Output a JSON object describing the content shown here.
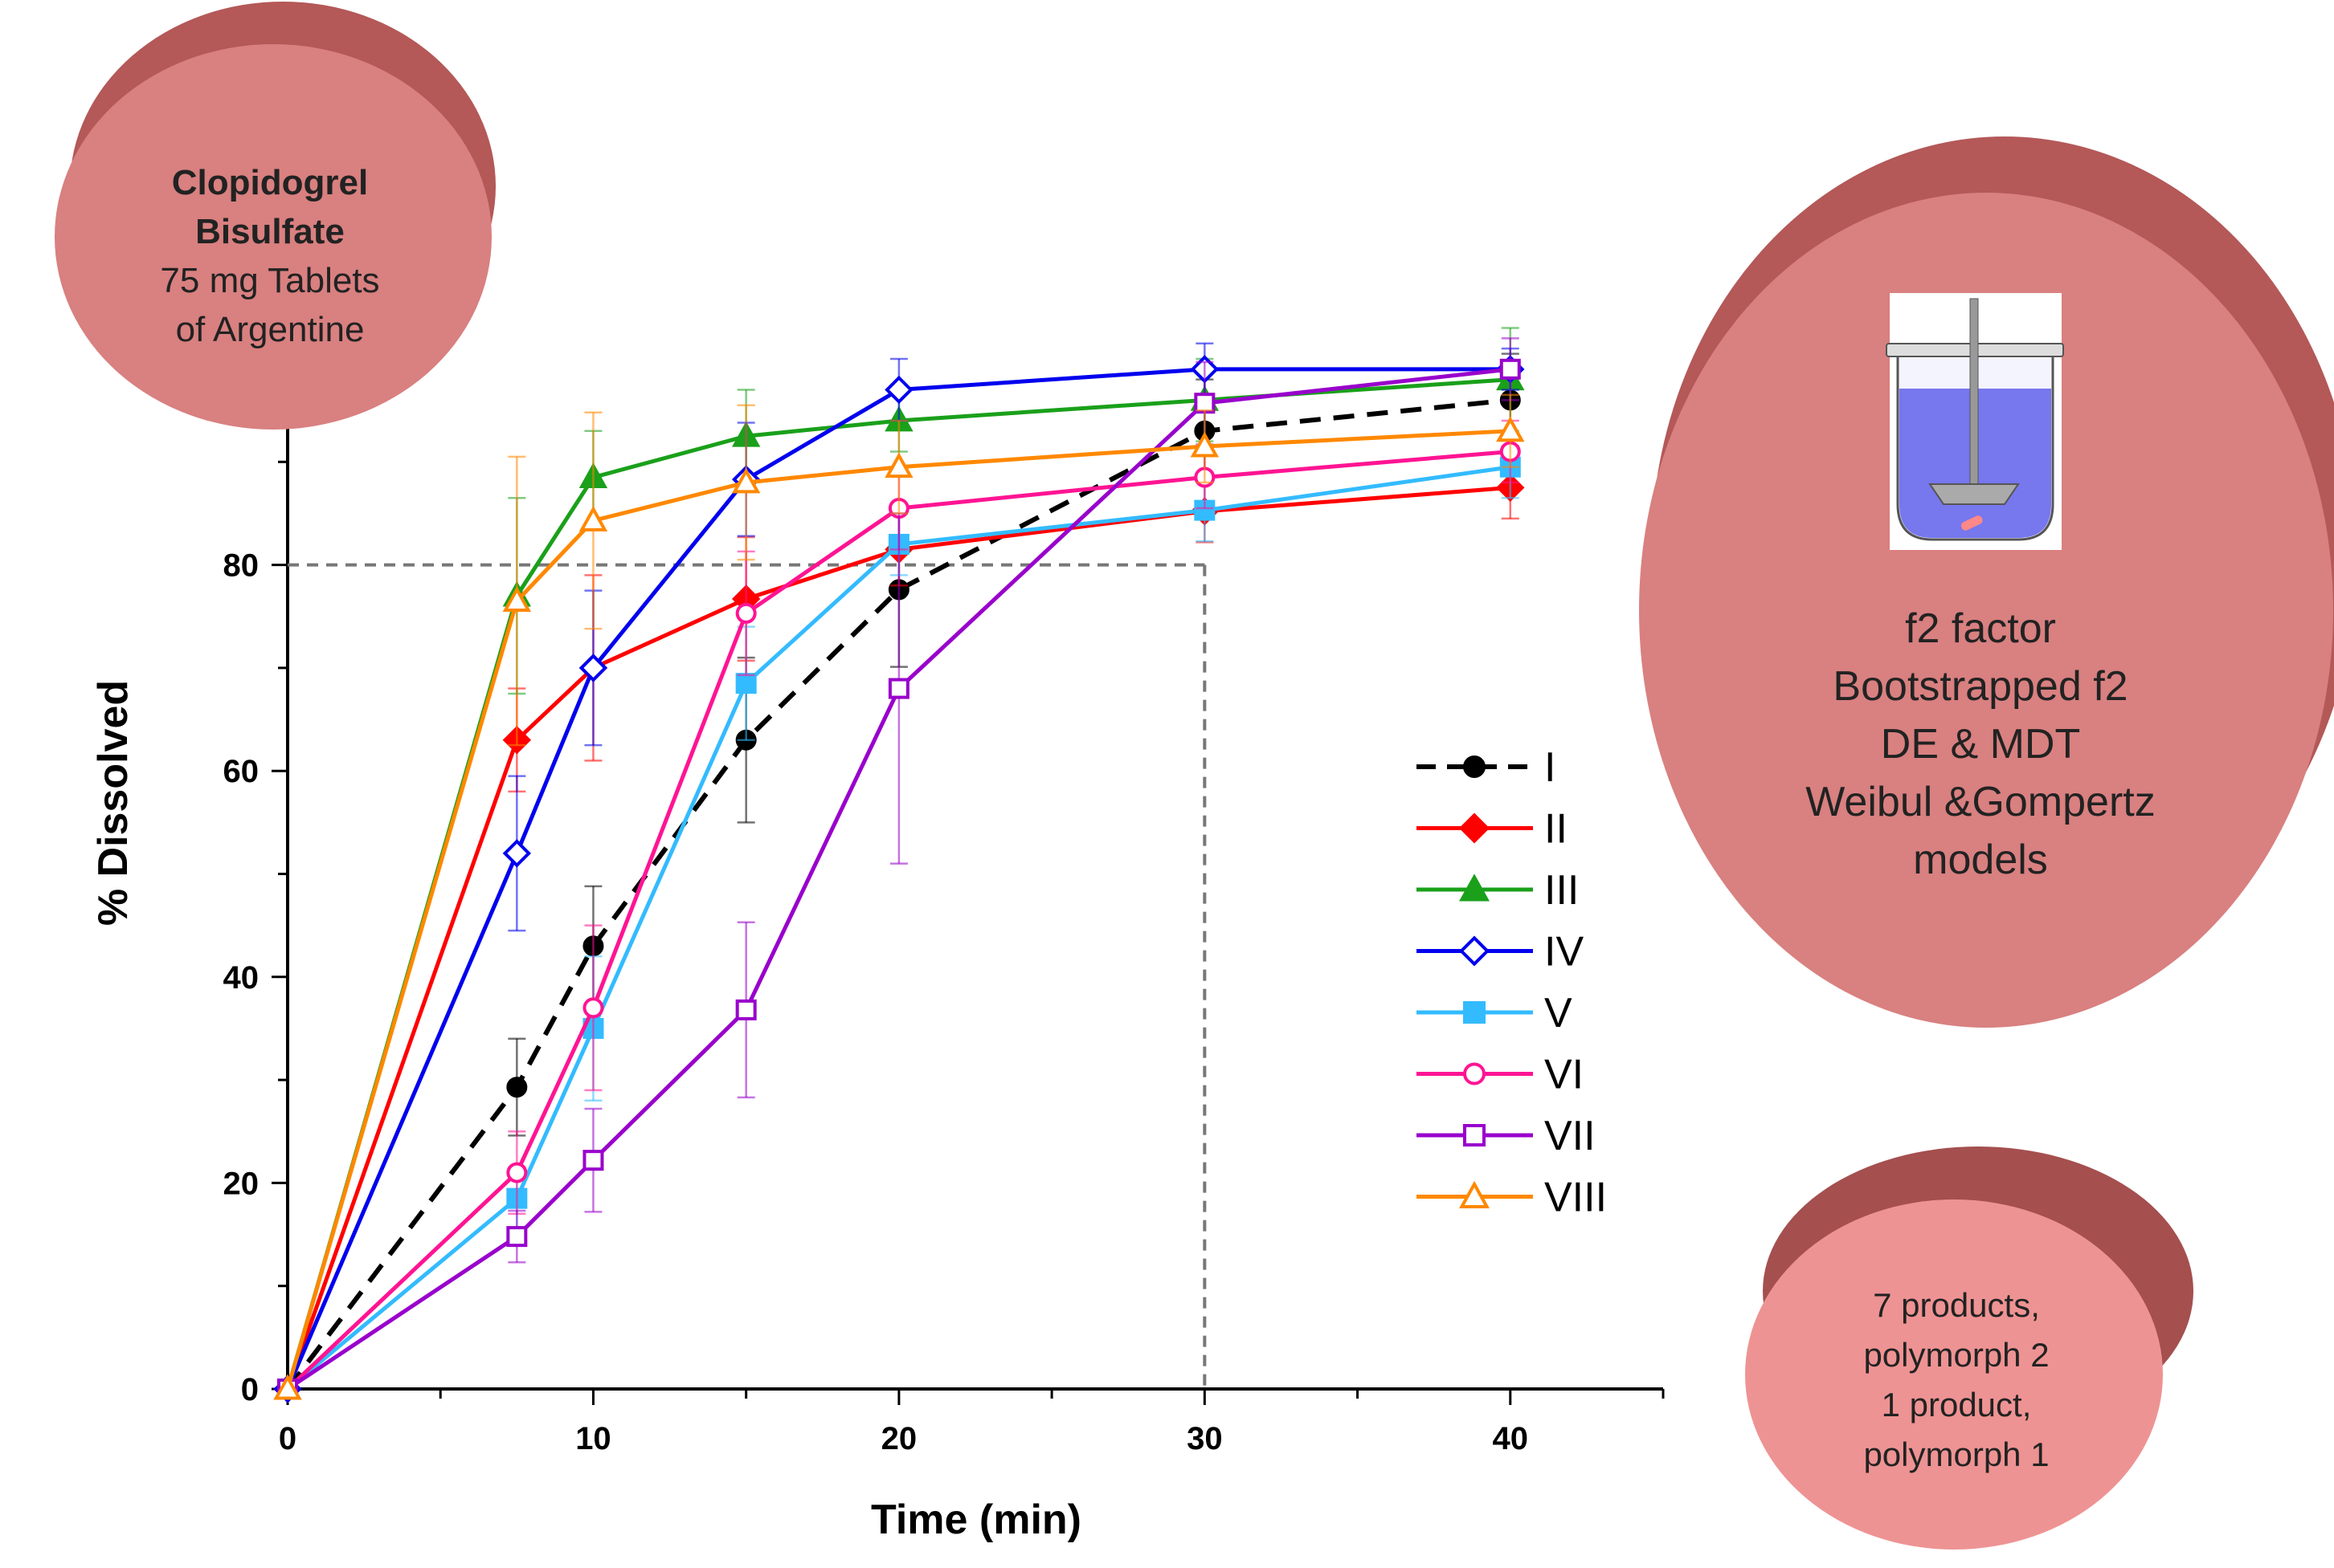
{
  "chart_data": {
    "type": "line",
    "xlabel": "Time (min)",
    "ylabel": "% Dissolved",
    "xlim": [
      0,
      45
    ],
    "ylim": [
      0,
      100
    ],
    "xticks": [
      0,
      10,
      20,
      30,
      40
    ],
    "yticks": [
      0,
      20,
      40,
      60,
      80
    ],
    "x": [
      0,
      7.5,
      10,
      15,
      20,
      30,
      40
    ],
    "reference_lines": {
      "y": 80,
      "x": 30,
      "style": "dashed",
      "color": "#777777"
    },
    "legend_position": "center-right",
    "series": [
      {
        "name": "I",
        "color": "#000000",
        "marker": "circle",
        "filled": true,
        "dashed": true,
        "values": [
          0,
          29.3,
          43.0,
          63.0,
          77.6,
          93.0,
          96.0
        ],
        "errors": [
          0,
          4.7,
          5.8,
          8.0,
          7.5,
          5.0,
          4.5
        ]
      },
      {
        "name": "II",
        "color": "#ff0000",
        "marker": "diamond",
        "filled": true,
        "dashed": false,
        "values": [
          0,
          63.0,
          70.0,
          76.7,
          81.5,
          85.2,
          87.5
        ],
        "errors": [
          0,
          5.0,
          9.0,
          6.0,
          3.5,
          3.0,
          3.0
        ]
      },
      {
        "name": "III",
        "color": "#1aa01a",
        "marker": "triangle",
        "filled": true,
        "dashed": false,
        "values": [
          0,
          77.0,
          88.5,
          92.5,
          94.0,
          96.0,
          98.0
        ],
        "errors": [
          0,
          9.5,
          4.5,
          4.5,
          3.0,
          4.0,
          5.0
        ]
      },
      {
        "name": "IV",
        "color": "#0000ee",
        "marker": "diamond",
        "filled": false,
        "dashed": false,
        "values": [
          0,
          52.0,
          70.0,
          88.3,
          97.0,
          99.0,
          99.0
        ],
        "errors": [
          0,
          7.5,
          7.5,
          5.5,
          3.0,
          2.5,
          2.0
        ]
      },
      {
        "name": "V",
        "color": "#33bbff",
        "marker": "square",
        "filled": true,
        "dashed": false,
        "values": [
          0,
          18.5,
          35.0,
          68.5,
          82.0,
          85.3,
          89.5
        ],
        "errors": [
          0,
          3.0,
          7.0,
          5.5,
          3.0,
          3.0,
          3.0
        ]
      },
      {
        "name": "VI",
        "color": "#ff1493",
        "marker": "circle",
        "filled": false,
        "dashed": false,
        "values": [
          0,
          21.0,
          37.0,
          75.3,
          85.5,
          88.5,
          91.0
        ],
        "errors": [
          0,
          4.0,
          8.0,
          6.0,
          4.0,
          3.0,
          3.0
        ]
      },
      {
        "name": "VII",
        "color": "#9900cc",
        "marker": "square",
        "filled": false,
        "dashed": false,
        "values": [
          0,
          14.8,
          22.2,
          36.8,
          68.0,
          95.7,
          99.0
        ],
        "errors": [
          0,
          2.5,
          5.0,
          8.5,
          17.0,
          4.0,
          3.0
        ]
      },
      {
        "name": "VIII",
        "color": "#ff8800",
        "marker": "triangle",
        "filled": false,
        "dashed": false,
        "values": [
          0,
          76.5,
          84.3,
          88.0,
          89.5,
          91.5,
          93.0
        ],
        "errors": [
          0,
          14.0,
          10.5,
          7.5,
          4.5,
          3.5,
          3.5
        ]
      }
    ]
  },
  "callouts": {
    "product": {
      "line1": "Clopidogrel",
      "line2": "Bisulfate",
      "line3": "75 mg Tablets",
      "line4": "of Argentine"
    },
    "methods": {
      "line1": "f2 factor",
      "line2": "Bootstrapped f2",
      "line3": "DE & MDT",
      "line4": "Weibul &Gompertz",
      "line5": "models"
    },
    "products": {
      "line1": "7 products,",
      "line2": "polymorph 2",
      "line3": "1 product,",
      "line4": "polymorph 1"
    }
  },
  "colors": {
    "disc_face": "#d98080",
    "disc_side": "#b45858",
    "disc_face_light": "#ee9393",
    "disc_side_dark": "#a54f4f"
  }
}
